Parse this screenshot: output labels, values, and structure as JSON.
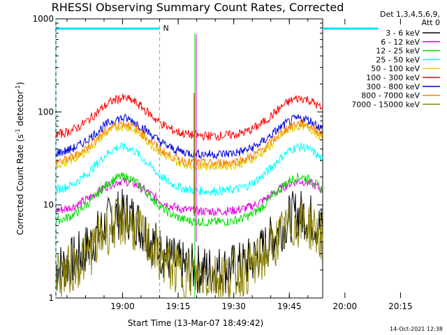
{
  "chart_data": {
    "type": "line",
    "title": "RHESSI Observing Summary Count Rates, Corrected",
    "xlabel": "Start Time (13-Mar-07 18:49:42)",
    "ylabel_main": "Corrected Count Rate (s",
    "ylabel_sup1": "-1",
    "ylabel_mid": " detector",
    "ylabel_sup2": "-1",
    "ylabel_end": ")",
    "y_scale": "log",
    "ylim": [
      1,
      1000
    ],
    "xlim_minutes": [
      -18,
      54
    ],
    "x_ticks": [
      {
        "minutes": 0,
        "label": "19:00"
      },
      {
        "minutes": 15,
        "label": "19:15"
      },
      {
        "minutes": 30,
        "label": "19:30"
      },
      {
        "minutes": 45,
        "label": "19:45"
      },
      {
        "minutes": 60,
        "label": "20:00"
      },
      {
        "minutes": 75,
        "label": "20:15"
      }
    ],
    "y_ticks": [
      {
        "value": 1,
        "label": "1"
      },
      {
        "value": 10,
        "label": "10"
      },
      {
        "value": 100,
        "label": "100"
      },
      {
        "value": 1000,
        "label": "1000"
      }
    ],
    "legend_header": [
      "Det 1,3,4,5,6,9,",
      "Att 0"
    ],
    "legend_position": "right",
    "annotation_n": "N",
    "footer_date": "14-Oct-2021 12:38",
    "series": [
      {
        "name": "3 - 6 keV",
        "color": "#000000",
        "base": 2.0,
        "peak": 8.0
      },
      {
        "name": "6 - 12 keV",
        "color": "#e000e0",
        "base": 8.5,
        "peak": 18.0
      },
      {
        "name": "12 - 25 keV",
        "color": "#00e000",
        "base": 6.5,
        "peak": 20.0
      },
      {
        "name": "25 - 50 keV",
        "color": "#00ffff",
        "base": 14.0,
        "peak": 42.0
      },
      {
        "name": "50 - 100 keV",
        "color": "#e0d000",
        "base": 26.0,
        "peak": 70.0
      },
      {
        "name": "100 - 300 keV",
        "color": "#ff0000",
        "base": 55.0,
        "peak": 140.0
      },
      {
        "name": "300 - 800 keV",
        "color": "#0000e0",
        "base": 35.0,
        "peak": 85.0
      },
      {
        "name": "800 - 7000 keV",
        "color": "#ff8000",
        "base": 28.0,
        "peak": 75.0
      },
      {
        "name": "7000 - 15000 keV",
        "color": "#8b8000",
        "base": 1.7,
        "peak": 6.5
      }
    ],
    "orbit_shape": {
      "peak1_minutes": 0,
      "peak2_minutes": 48,
      "width_minutes": 10
    },
    "night_markers_minutes": [
      -18,
      10,
      69,
      97
    ]
  }
}
